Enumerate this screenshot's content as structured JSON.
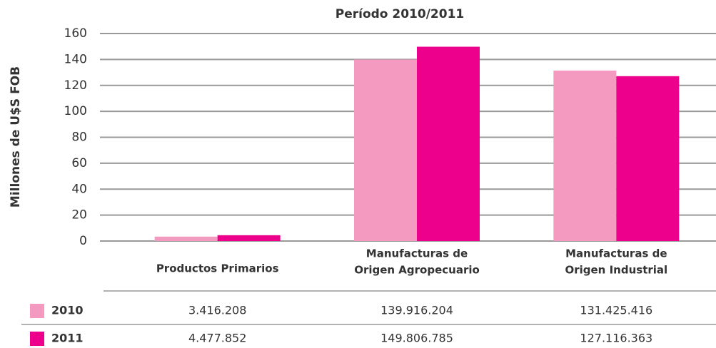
{
  "chart_data": {
    "type": "bar",
    "title": "Período 2010/2011",
    "y_label": "Millones de U$S FOB",
    "categories": [
      [
        "Productos Primarios"
      ],
      [
        "Manufacturas de",
        "Origen Agropecuario"
      ],
      [
        "Manufacturas de",
        "Origen Industrial"
      ]
    ],
    "series": [
      {
        "name": "2010",
        "color": "#f49ac1",
        "values": [
          3.416208,
          139.916204,
          131.425416
        ],
        "value_labels": [
          "3.416.208",
          "139.916.204",
          "131.425.416"
        ]
      },
      {
        "name": "2011",
        "color": "#ec008c",
        "values": [
          4.477852,
          149.806785,
          127.116363
        ],
        "value_labels": [
          "4.477.852",
          "149.806.785",
          "127.116.363"
        ]
      }
    ],
    "ylim": [
      0,
      160
    ],
    "yticks": [
      0,
      20,
      40,
      60,
      80,
      100,
      120,
      140,
      160
    ],
    "grid": true
  }
}
